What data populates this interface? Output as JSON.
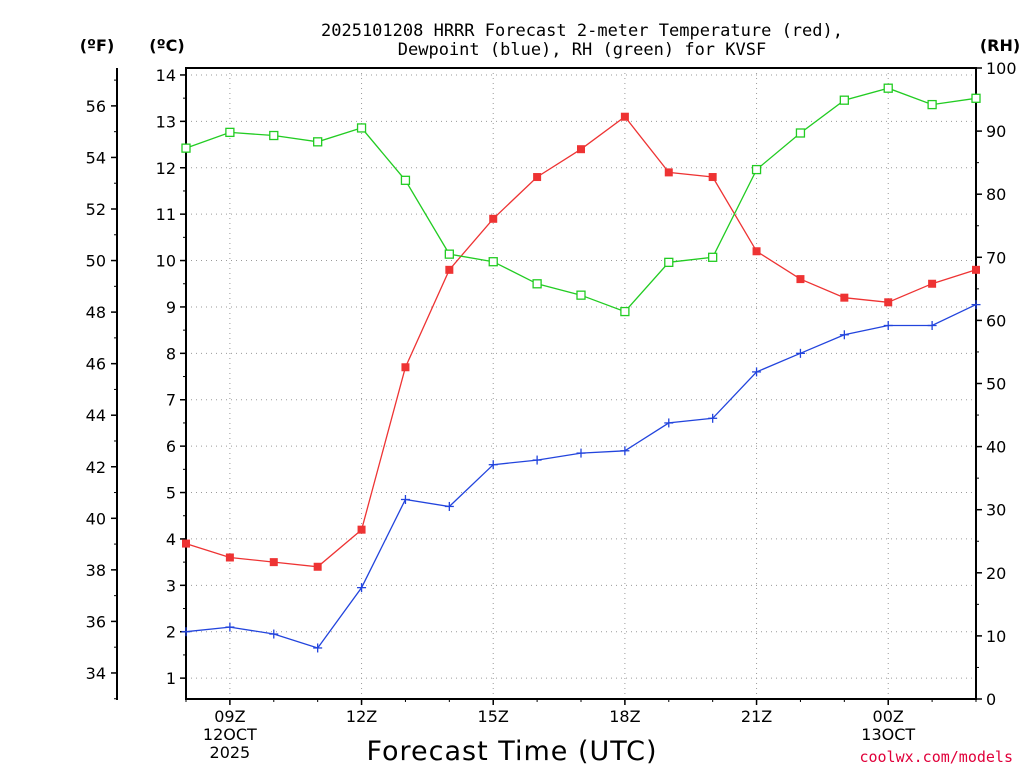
{
  "chart_data": {
    "type": "line",
    "title": [
      "2025101208 HRRR Forecast 2-meter Temperature (red),",
      "Dewpoint (blue), RH (green) for KVSF"
    ],
    "xlabel": "Forecast Time (UTC)",
    "x_tick_labels": [
      {
        "hour": 9,
        "lines": [
          "09Z",
          "12OCT",
          "2025"
        ]
      },
      {
        "hour": 12,
        "lines": [
          "12Z"
        ]
      },
      {
        "hour": 15,
        "lines": [
          "15Z"
        ]
      },
      {
        "hour": 18,
        "lines": [
          "18Z"
        ]
      },
      {
        "hour": 21,
        "lines": [
          "21Z"
        ]
      },
      {
        "hour": 24,
        "lines": [
          "00Z",
          "13OCT"
        ]
      }
    ],
    "xlim": [
      8,
      26
    ],
    "x": [
      8,
      9,
      10,
      11,
      12,
      13,
      14,
      15,
      16,
      17,
      18,
      19,
      20,
      21,
      22,
      23,
      24,
      25,
      26
    ],
    "y_left_c": {
      "label": "(ºC)",
      "lim": [
        0.55,
        14.15
      ],
      "ticks": [
        1,
        2,
        3,
        4,
        5,
        6,
        7,
        8,
        9,
        10,
        11,
        12,
        13,
        14
      ]
    },
    "y_left_f": {
      "label": "(ºF)",
      "ticks": [
        34,
        36,
        38,
        40,
        42,
        44,
        46,
        48,
        50,
        52,
        54,
        56
      ]
    },
    "y_right_rh": {
      "label": "(RH)",
      "lim": [
        0,
        100
      ],
      "ticks": [
        0,
        10,
        20,
        30,
        40,
        50,
        60,
        70,
        80,
        90,
        100
      ]
    },
    "grid": true,
    "series": [
      {
        "name": "Temperature",
        "axis": "c",
        "color": "#ee3333",
        "marker": "filled-square",
        "values": [
          3.9,
          3.6,
          3.5,
          3.4,
          4.2,
          7.7,
          9.8,
          10.9,
          11.8,
          12.4,
          13.1,
          11.9,
          11.8,
          10.2,
          9.6,
          9.2,
          9.1,
          9.5,
          9.8
        ]
      },
      {
        "name": "Dewpoint",
        "axis": "c",
        "color": "#2244dd",
        "marker": "plus",
        "values": [
          2.0,
          2.1,
          1.95,
          1.65,
          2.95,
          4.85,
          4.7,
          5.6,
          5.7,
          5.85,
          5.9,
          6.5,
          6.6,
          7.6,
          8.0,
          8.4,
          8.6,
          8.6,
          9.05
        ]
      },
      {
        "name": "RH",
        "axis": "rh",
        "color": "#22cc22",
        "marker": "open-square",
        "values": [
          87.3,
          89.8,
          89.3,
          88.3,
          90.5,
          82.2,
          70.5,
          69.3,
          65.8,
          64.0,
          61.4,
          69.2,
          70.0,
          83.9,
          89.7,
          94.9,
          96.8,
          94.2,
          95.2
        ]
      }
    ]
  },
  "credit": "coolwx.com/models"
}
